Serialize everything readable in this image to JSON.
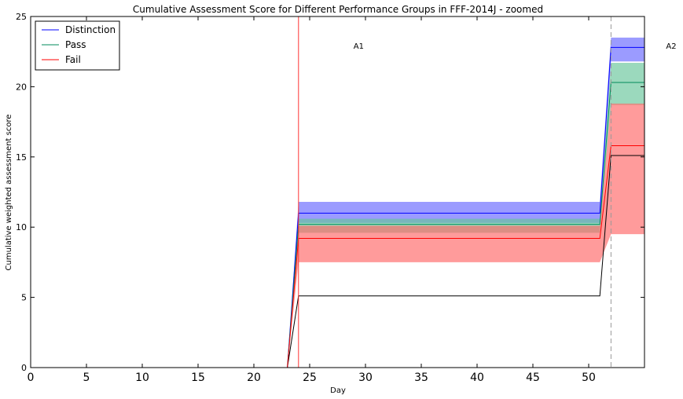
{
  "chart_data": {
    "type": "line",
    "title": "Cumulative Assessment Score for Different Performance Groups in FFF-2014J - zoomed",
    "xlabel": "Day",
    "ylabel": "Cumulative weighted assessment score",
    "xlim": [
      0,
      55
    ],
    "ylim": [
      0,
      25
    ],
    "x_ticks": [
      "0",
      "5",
      "10",
      "15",
      "20",
      "25",
      "30",
      "35",
      "40",
      "45",
      "50"
    ],
    "y_ticks": [
      "0",
      "5",
      "10",
      "15",
      "20",
      "25"
    ],
    "grid": false,
    "legend_position": "top-left",
    "colors": {
      "distinction": "#0000ff",
      "pass": "#008b5b",
      "fail": "#ff0000",
      "min_line": "#000000",
      "assessment_line": "#ff3333",
      "dashed_line": "#999999"
    },
    "series": [
      {
        "name": "Distinction",
        "x": [
          0,
          23,
          24,
          51,
          52,
          55
        ],
        "y": [
          0,
          0,
          11,
          11,
          22.8,
          22.8
        ],
        "band_low": [
          0,
          0,
          10.3,
          10.3,
          21.8,
          21.8
        ],
        "band_high": [
          0,
          0,
          11.8,
          11.8,
          23.5,
          23.5
        ],
        "band_color": "#6666ff"
      },
      {
        "name": "Pass",
        "x": [
          0,
          23,
          24,
          51,
          52,
          55
        ],
        "y": [
          0,
          0,
          10.2,
          10.2,
          20.3,
          20.3
        ],
        "band_low": [
          0,
          0,
          9.6,
          9.6,
          18.7,
          18.7
        ],
        "band_high": [
          0,
          0,
          10.6,
          10.6,
          21.7,
          21.7
        ],
        "band_color": "#66c499"
      },
      {
        "name": "Fail",
        "x": [
          0,
          23,
          24,
          51,
          52,
          55
        ],
        "y": [
          0,
          0,
          9.2,
          9.2,
          15.8,
          15.8
        ],
        "band_low": [
          0,
          0,
          7.5,
          7.5,
          9.5,
          9.5
        ],
        "band_high": [
          0,
          0,
          10.1,
          10.1,
          18.8,
          18.8
        ],
        "band_color": "#ff6666"
      }
    ],
    "min_line": {
      "x": [
        0,
        23,
        24,
        51,
        52,
        55
      ],
      "y": [
        0,
        0,
        5.1,
        5.1,
        15.1,
        15.1
      ]
    },
    "assessments": [
      {
        "label": "A1",
        "day": 24,
        "style": "solid"
      },
      {
        "label": "A2",
        "day": 52,
        "style": "dashed"
      }
    ]
  }
}
